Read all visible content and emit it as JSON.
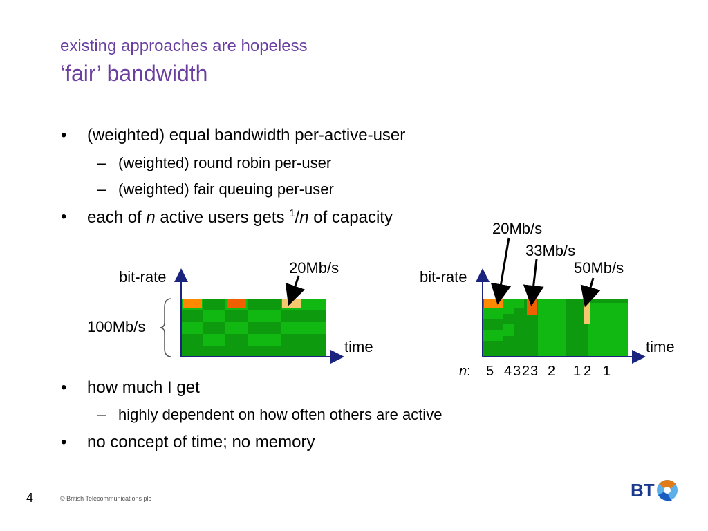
{
  "title": {
    "line1": "existing approaches are hopeless",
    "line2": "‘fair’ bandwidth"
  },
  "bullets": {
    "b1": "(weighted) equal bandwidth per-active-user",
    "b1_sub1": "(weighted) round robin per-user",
    "b1_sub2": "(weighted) fair queuing per-user",
    "b2_pre": "each of ",
    "b2_n": "n",
    "b2_mid": " active users gets ",
    "b2_frac_num": "1",
    "b2_frac_slash": "/",
    "b2_frac_den": "n",
    "b2_post": " of capacity",
    "b3": "how much I get",
    "b3_sub1": "highly dependent on how often others are active",
    "b4": "no concept of time; no memory",
    "bullet_symbol": "•",
    "dash_symbol": "–"
  },
  "diagram_left": {
    "ylabel": "bit-rate",
    "xlabel": "time",
    "capacity_label": "100Mb/s",
    "callout": "20Mb/s"
  },
  "diagram_right": {
    "ylabel": "bit-rate",
    "xlabel": "time",
    "callout1": "20Mb/s",
    "callout2": "33Mb/s",
    "callout3": "50Mb/s",
    "n_label": "n",
    "n_colon": ":",
    "n_values": [
      "5",
      "4",
      "3",
      "2",
      "3",
      "2",
      "1",
      "2",
      "1"
    ]
  },
  "colors": {
    "title": "#6a3fa0",
    "green_light": "#11b811",
    "green_dark": "#0e9a0e",
    "orange": "#ff8a00",
    "orange_dark": "#f06000",
    "tan": "#f5c870"
  },
  "footer": {
    "page_number": "4",
    "copyright": "© British Telecommunications plc",
    "logo_text": "BT"
  }
}
